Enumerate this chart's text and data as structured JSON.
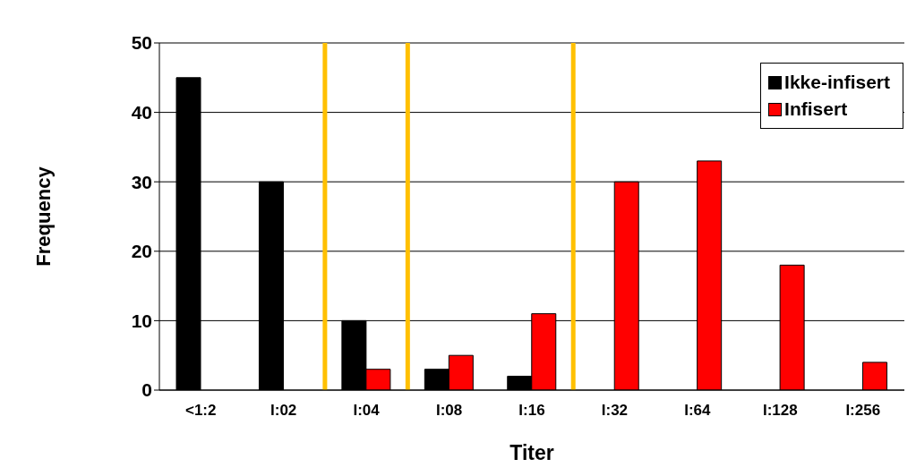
{
  "chart_data": {
    "type": "bar",
    "xlabel": "Titer",
    "ylabel": "Frequency",
    "categories": [
      "<1:2",
      "I:02",
      "I:04",
      "I:08",
      "I:16",
      "I:32",
      "I:64",
      "I:128",
      "I:256"
    ],
    "series": [
      {
        "name": "Ikke-infisert",
        "color": "#000000",
        "values": [
          45,
          30,
          10,
          3,
          2,
          null,
          null,
          null,
          null
        ]
      },
      {
        "name": "Infisert",
        "color": "#ff0000",
        "values": [
          null,
          null,
          3,
          5,
          11,
          30,
          33,
          18,
          4
        ]
      }
    ],
    "ylim": [
      0,
      50
    ],
    "yticks": [
      0,
      10,
      20,
      30,
      40,
      50
    ],
    "grid": "y",
    "legend": "top right"
  }
}
